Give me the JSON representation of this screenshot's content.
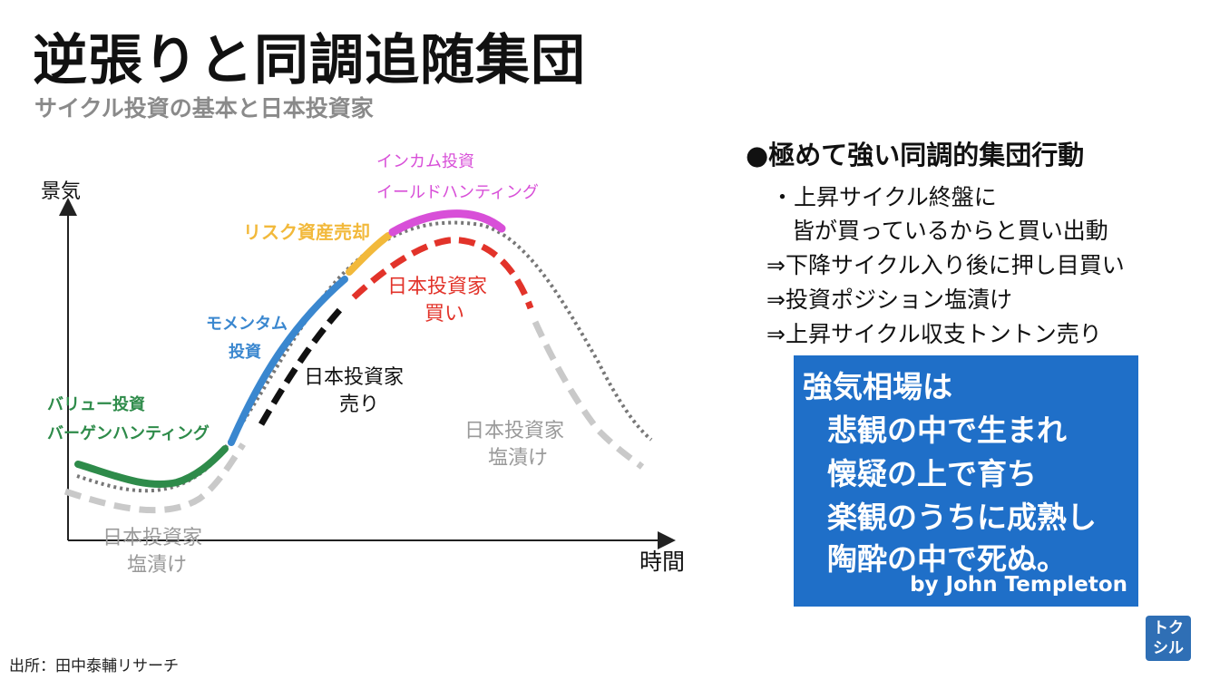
{
  "title": "逆張りと同調追随集団",
  "subtitle": "サイクル投資の基本と日本投資家",
  "chart": {
    "y_axis_label": "景気",
    "x_axis_label": "時間",
    "phase_labels": {
      "value": [
        "バリュー投資",
        "バーゲンハンティング"
      ],
      "momentum": [
        "モメンタム",
        "投資"
      ],
      "risk_sale": "リスク資産売却",
      "income": [
        "インカム投資",
        "イールドハンティング"
      ],
      "jp_buy": [
        "日本投資家",
        "買い"
      ],
      "jp_sell": [
        "日本投資家",
        "売り"
      ],
      "jp_hold_left": [
        "日本投資家",
        "塩漬け"
      ],
      "jp_hold_right": [
        "日本投資家",
        "塩漬け"
      ]
    },
    "colors": {
      "value": "#2e8b4a",
      "momentum": "#3a87cf",
      "risk_sale": "#f2b93b",
      "income": "#d84fd8",
      "jp_buy": "#e2332a",
      "jp_sell": "#111111",
      "jp_hold": "#c9c9c9",
      "cycle": "#777777"
    }
  },
  "source": "出所：田中泰輔リサーチ",
  "notes": {
    "heading": "●極めて強い同調的集団行動",
    "points": [
      "・上昇サイクル終盤に",
      "皆が買っているからと買い出動",
      "⇒下降サイクル入り後に押し目買い",
      "⇒投資ポジション塩漬け",
      "⇒上昇サイクル収支トントン売り"
    ]
  },
  "quote": {
    "lines": [
      "強気相場は",
      "悲観の中で生まれ",
      "懐疑の上で育ち",
      "楽観のうちに成熟し",
      "陶酔の中で死ぬ。"
    ],
    "author": "by John Templeton"
  },
  "logo": [
    "トク",
    "シル"
  ]
}
